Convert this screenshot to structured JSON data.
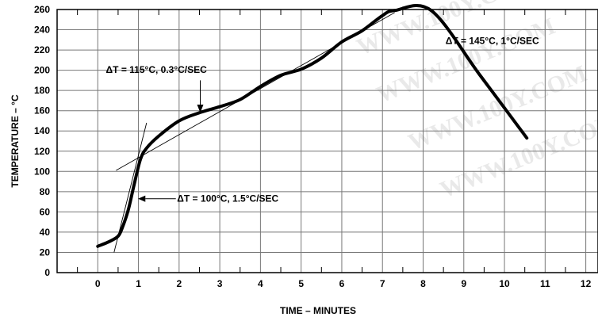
{
  "chart_data": {
    "type": "line",
    "title": "",
    "xlabel": "TIME – MINUTES",
    "ylabel": "TEMPERATURE – °C",
    "xlim": [
      -1,
      12.3
    ],
    "ylim": [
      0,
      260
    ],
    "x_ticks": [
      0,
      1,
      2,
      3,
      4,
      5,
      6,
      7,
      8,
      9,
      10,
      11,
      12
    ],
    "y_ticks": [
      0,
      20,
      40,
      60,
      80,
      100,
      120,
      140,
      160,
      180,
      200,
      220,
      240,
      260
    ],
    "grid": true,
    "series": [
      {
        "color": "#000000",
        "x": [
          0.0,
          0.3,
          0.5,
          0.6,
          0.75,
          0.9,
          1.05,
          1.2,
          1.5,
          2.0,
          2.5,
          3.0,
          3.5,
          4.0,
          4.5,
          5.0,
          5.5,
          6.0,
          6.5,
          7.0,
          7.3,
          8.2,
          9.4,
          10.55
        ],
        "y": [
          26,
          31,
          36,
          44,
          62,
          88,
          112,
          123,
          135,
          150,
          158,
          164,
          171,
          184,
          195,
          201,
          212,
          228,
          239,
          254,
          259,
          259,
          195,
          133
        ]
      }
    ],
    "tangent_lines": [
      {
        "x": [
          0.4,
          1.2
        ],
        "y": [
          20,
          148
        ]
      },
      {
        "x": [
          0.45,
          7.3
        ],
        "y": [
          101,
          257
        ]
      }
    ],
    "annotations": [
      {
        "text": "ΔT = 115°C, 0.3°C/SEC"
      },
      {
        "text": "ΔT = 100°C, 1.5°C/SEC"
      },
      {
        "text": "ΔT = 145°C, 1°C/SEC"
      }
    ],
    "watermark": "WWW.100Y.COM"
  }
}
